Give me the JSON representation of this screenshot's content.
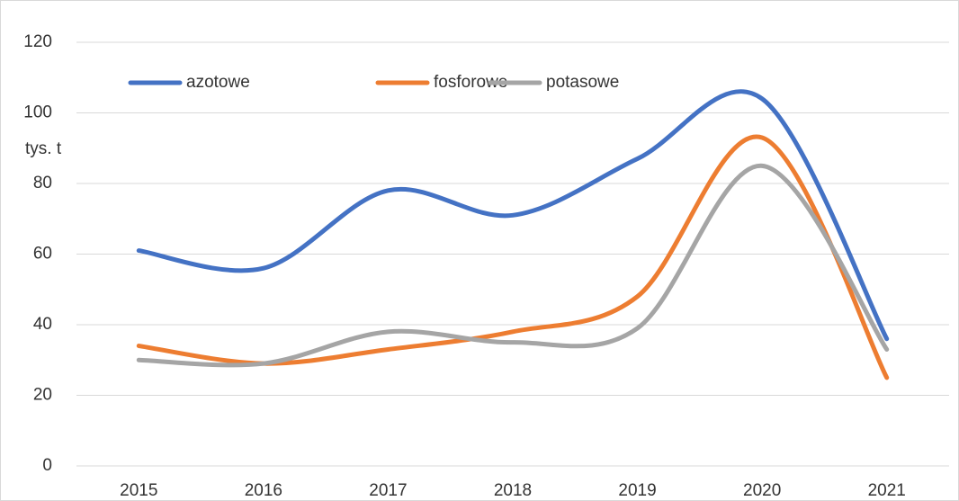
{
  "chart_data": {
    "type": "line",
    "categories": [
      "2015",
      "2016",
      "2017",
      "2018",
      "2019",
      "2020",
      "2021"
    ],
    "y_label": "tys. t",
    "series": [
      {
        "name": "azotowe",
        "color": "#4472c4",
        "values": [
          61,
          56,
          78,
          71,
          87,
          104,
          36
        ]
      },
      {
        "name": "fosforowe",
        "color": "#ed7d31",
        "values": [
          34,
          29,
          33,
          38,
          48,
          93,
          25
        ]
      },
      {
        "name": "potasowe",
        "color": "#a5a5a5",
        "values": [
          30,
          29,
          38,
          35,
          39,
          85,
          33
        ]
      }
    ],
    "ylim": [
      0,
      120
    ],
    "yticks": [
      0,
      20,
      40,
      60,
      80,
      100,
      120
    ],
    "grid": true,
    "smooth": true,
    "legend": "top"
  }
}
